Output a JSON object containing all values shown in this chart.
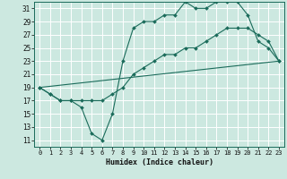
{
  "xlabel": "Humidex (Indice chaleur)",
  "bg_color": "#cce8e0",
  "line_color": "#1a6b5a",
  "grid_color": "#ffffff",
  "xlim": [
    -0.5,
    23.5
  ],
  "ylim": [
    10,
    32
  ],
  "yticks": [
    11,
    13,
    15,
    17,
    19,
    21,
    23,
    25,
    27,
    29,
    31
  ],
  "xticks": [
    0,
    1,
    2,
    3,
    4,
    5,
    6,
    7,
    8,
    9,
    10,
    11,
    12,
    13,
    14,
    15,
    16,
    17,
    18,
    19,
    20,
    21,
    22,
    23
  ],
  "line1_x": [
    0,
    1,
    2,
    3,
    4,
    5,
    6,
    7,
    8,
    9,
    10,
    11,
    12,
    13,
    14,
    15,
    16,
    17,
    18,
    19,
    20,
    21,
    22,
    23
  ],
  "line1_y": [
    19,
    18,
    17,
    17,
    16,
    12,
    11,
    15,
    23,
    28,
    29,
    29,
    30,
    30,
    32,
    31,
    31,
    32,
    32,
    32,
    30,
    26,
    25,
    23
  ],
  "line2_x": [
    0,
    1,
    2,
    3,
    4,
    5,
    6,
    7,
    8,
    9,
    10,
    11,
    12,
    13,
    14,
    15,
    16,
    17,
    18,
    19,
    20,
    21,
    22,
    23
  ],
  "line2_y": [
    19,
    18,
    17,
    17,
    17,
    17,
    17,
    18,
    19,
    21,
    22,
    23,
    24,
    24,
    25,
    25,
    26,
    27,
    28,
    28,
    28,
    27,
    26,
    23
  ],
  "line3_x": [
    0,
    23
  ],
  "line3_y": [
    19,
    23
  ]
}
